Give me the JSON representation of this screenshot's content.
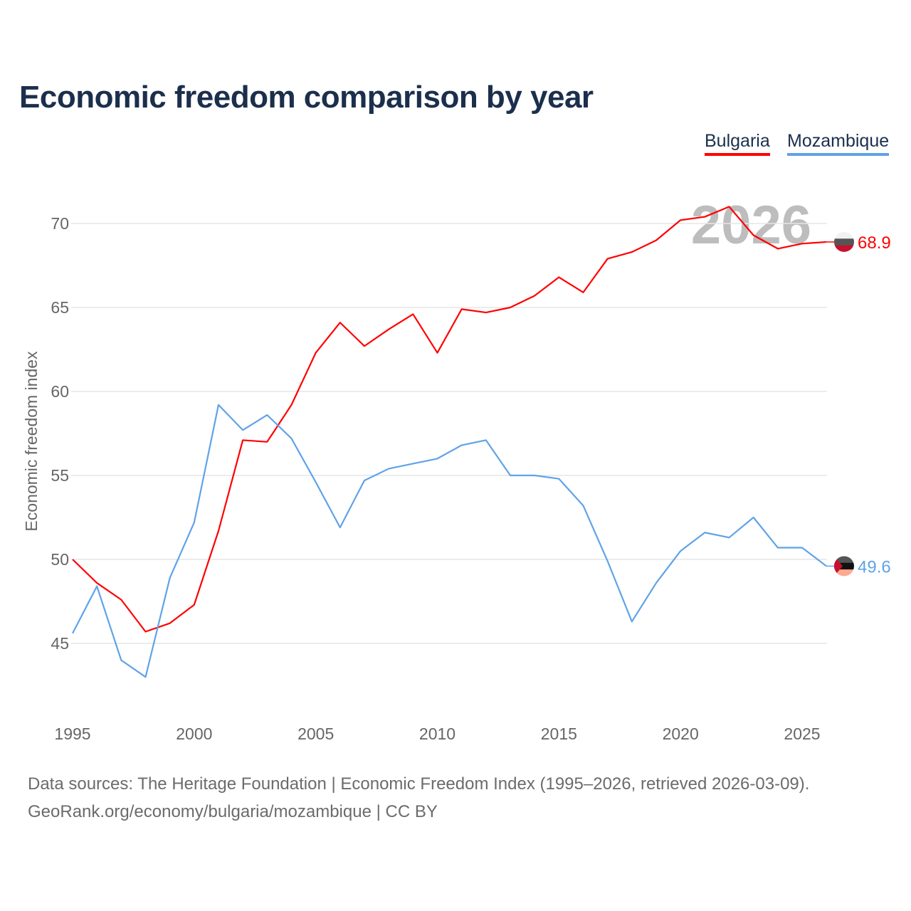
{
  "title": "Economic freedom comparison by year",
  "legend": [
    {
      "label": "Bulgaria",
      "color": "#ff0000"
    },
    {
      "label": "Mozambique",
      "color": "#5fa3e8"
    }
  ],
  "year_watermark": "2026",
  "footer": {
    "line1": "Data sources: The Heritage Foundation | Economic Freedom Index (1995–2026, retrieved 2026-03-09).",
    "line2": "GeoRank.org/economy/bulgaria/mozambique | CC BY"
  },
  "chart_data": {
    "type": "line",
    "title": "Economic freedom comparison by year",
    "xlabel": "",
    "ylabel": "Economic freedom index",
    "xlim": [
      1995,
      2026
    ],
    "ylim": [
      41,
      73
    ],
    "xticks": [
      "1995",
      "2000",
      "2005",
      "2010",
      "2015",
      "2020",
      "2025"
    ],
    "yticks": [
      "45",
      "50",
      "55",
      "60",
      "65",
      "70"
    ],
    "grid": true,
    "legend_position": "top-right",
    "x": [
      1995,
      1996,
      1997,
      1998,
      1999,
      2000,
      2001,
      2002,
      2003,
      2004,
      2005,
      2006,
      2007,
      2008,
      2009,
      2010,
      2011,
      2012,
      2013,
      2014,
      2015,
      2016,
      2017,
      2018,
      2019,
      2020,
      2021,
      2022,
      2023,
      2024,
      2025,
      2026
    ],
    "series": [
      {
        "name": "Bulgaria",
        "color": "#ff0000",
        "end_label": "68.9",
        "values": [
          50.0,
          48.6,
          47.6,
          45.7,
          46.2,
          47.3,
          51.7,
          57.1,
          57.0,
          59.2,
          62.3,
          64.1,
          62.7,
          63.7,
          64.6,
          62.3,
          64.9,
          64.7,
          65.0,
          65.7,
          66.8,
          65.9,
          67.9,
          68.3,
          69.0,
          70.2,
          70.4,
          71.0,
          69.3,
          68.5,
          68.8,
          68.9
        ]
      },
      {
        "name": "Mozambique",
        "color": "#5fa3e8",
        "end_label": "49.6",
        "values": [
          45.6,
          48.4,
          44.0,
          43.0,
          48.9,
          52.2,
          59.2,
          57.7,
          58.6,
          57.2,
          54.6,
          51.9,
          54.7,
          55.4,
          55.7,
          56.0,
          56.8,
          57.1,
          55.0,
          55.0,
          54.8,
          53.2,
          49.9,
          46.3,
          48.6,
          50.5,
          51.6,
          51.3,
          52.5,
          50.7,
          50.7,
          49.6
        ]
      }
    ]
  }
}
